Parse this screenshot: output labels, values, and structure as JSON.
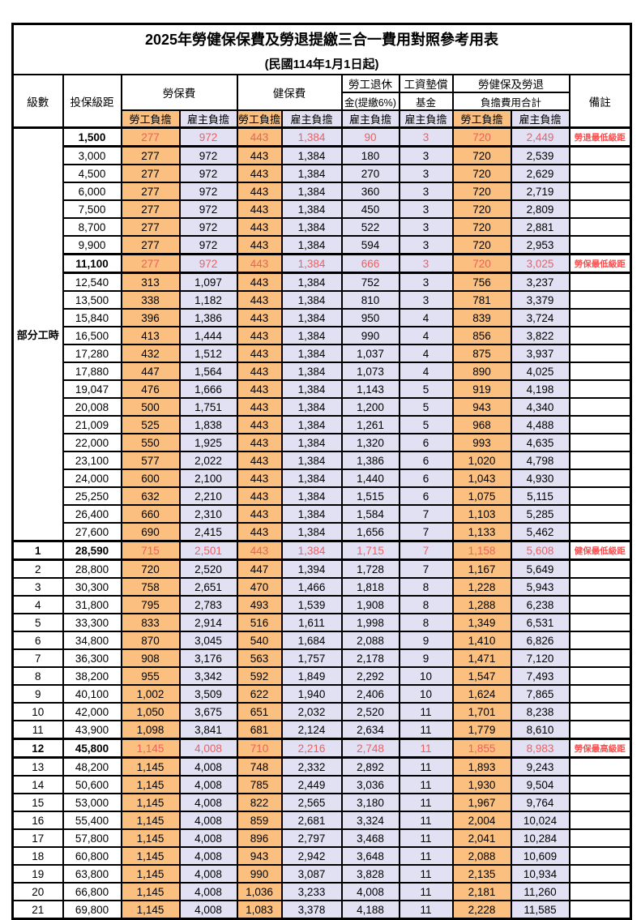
{
  "title": "2025年勞健保保費及勞退提繳三合一費用對照參考用表",
  "subtitle": "(民國114年1月1日起)",
  "header": {
    "level": "級數",
    "bracket": "投保級距",
    "labor_insurance": "勞保費",
    "health_insurance": "健保費",
    "pension_l1": "勞工退休",
    "pension_l2": "金(提繳6%)",
    "wage_fund_l1": "工資墊償",
    "wage_fund_l2": "基金",
    "total_l1": "勞健保及勞退",
    "total_l2": "負擔費用合計",
    "remark": "備註",
    "employee": "勞工負擔",
    "employer": "雇主負擔"
  },
  "part_time_label": "部分工時",
  "colors": {
    "employee_bg": "#fbbf80",
    "employer_bg": "#e2e0f3",
    "highlight_value_text": "#ee5f5f",
    "remark_text": "#fa4d4d"
  },
  "rows": [
    {
      "level": "",
      "bracket": "1,500",
      "values": [
        "277",
        "972",
        "443",
        "1,384",
        "90",
        "3",
        "720",
        "2,449"
      ],
      "remark": "勞退最低級距",
      "highlight": true
    },
    {
      "level": "",
      "bracket": "3,000",
      "values": [
        "277",
        "972",
        "443",
        "1,384",
        "180",
        "3",
        "720",
        "2,539"
      ],
      "remark": "",
      "highlight": false
    },
    {
      "level": "",
      "bracket": "4,500",
      "values": [
        "277",
        "972",
        "443",
        "1,384",
        "270",
        "3",
        "720",
        "2,629"
      ],
      "remark": "",
      "highlight": false
    },
    {
      "level": "",
      "bracket": "6,000",
      "values": [
        "277",
        "972",
        "443",
        "1,384",
        "360",
        "3",
        "720",
        "2,719"
      ],
      "remark": "",
      "highlight": false
    },
    {
      "level": "",
      "bracket": "7,500",
      "values": [
        "277",
        "972",
        "443",
        "1,384",
        "450",
        "3",
        "720",
        "2,809"
      ],
      "remark": "",
      "highlight": false
    },
    {
      "level": "",
      "bracket": "8,700",
      "values": [
        "277",
        "972",
        "443",
        "1,384",
        "522",
        "3",
        "720",
        "2,881"
      ],
      "remark": "",
      "highlight": false
    },
    {
      "level": "",
      "bracket": "9,900",
      "values": [
        "277",
        "972",
        "443",
        "1,384",
        "594",
        "3",
        "720",
        "2,953"
      ],
      "remark": "",
      "highlight": false
    },
    {
      "level": "",
      "bracket": "11,100",
      "values": [
        "277",
        "972",
        "443",
        "1,384",
        "666",
        "3",
        "720",
        "3,025"
      ],
      "remark": "勞保最低級距",
      "highlight": true
    },
    {
      "level": "",
      "bracket": "12,540",
      "values": [
        "313",
        "1,097",
        "443",
        "1,384",
        "752",
        "3",
        "756",
        "3,237"
      ],
      "remark": "",
      "highlight": false
    },
    {
      "level": "",
      "bracket": "13,500",
      "values": [
        "338",
        "1,182",
        "443",
        "1,384",
        "810",
        "3",
        "781",
        "3,379"
      ],
      "remark": "",
      "highlight": false
    },
    {
      "level": "",
      "bracket": "15,840",
      "values": [
        "396",
        "1,386",
        "443",
        "1,384",
        "950",
        "4",
        "839",
        "3,724"
      ],
      "remark": "",
      "highlight": false
    },
    {
      "level": "",
      "bracket": "16,500",
      "values": [
        "413",
        "1,444",
        "443",
        "1,384",
        "990",
        "4",
        "856",
        "3,822"
      ],
      "remark": "",
      "highlight": false
    },
    {
      "level": "",
      "bracket": "17,280",
      "values": [
        "432",
        "1,512",
        "443",
        "1,384",
        "1,037",
        "4",
        "875",
        "3,937"
      ],
      "remark": "",
      "highlight": false
    },
    {
      "level": "",
      "bracket": "17,880",
      "values": [
        "447",
        "1,564",
        "443",
        "1,384",
        "1,073",
        "4",
        "890",
        "4,025"
      ],
      "remark": "",
      "highlight": false
    },
    {
      "level": "",
      "bracket": "19,047",
      "values": [
        "476",
        "1,666",
        "443",
        "1,384",
        "1,143",
        "5",
        "919",
        "4,198"
      ],
      "remark": "",
      "highlight": false
    },
    {
      "level": "",
      "bracket": "20,008",
      "values": [
        "500",
        "1,751",
        "443",
        "1,384",
        "1,200",
        "5",
        "943",
        "4,340"
      ],
      "remark": "",
      "highlight": false
    },
    {
      "level": "",
      "bracket": "21,009",
      "values": [
        "525",
        "1,838",
        "443",
        "1,384",
        "1,261",
        "5",
        "968",
        "4,488"
      ],
      "remark": "",
      "highlight": false
    },
    {
      "level": "",
      "bracket": "22,000",
      "values": [
        "550",
        "1,925",
        "443",
        "1,384",
        "1,320",
        "6",
        "993",
        "4,635"
      ],
      "remark": "",
      "highlight": false
    },
    {
      "level": "",
      "bracket": "23,100",
      "values": [
        "577",
        "2,022",
        "443",
        "1,384",
        "1,386",
        "6",
        "1,020",
        "4,798"
      ],
      "remark": "",
      "highlight": false
    },
    {
      "level": "",
      "bracket": "24,000",
      "values": [
        "600",
        "2,100",
        "443",
        "1,384",
        "1,440",
        "6",
        "1,043",
        "4,930"
      ],
      "remark": "",
      "highlight": false
    },
    {
      "level": "",
      "bracket": "25,250",
      "values": [
        "632",
        "2,210",
        "443",
        "1,384",
        "1,515",
        "6",
        "1,075",
        "5,115"
      ],
      "remark": "",
      "highlight": false
    },
    {
      "level": "",
      "bracket": "26,400",
      "values": [
        "660",
        "2,310",
        "443",
        "1,384",
        "1,584",
        "7",
        "1,103",
        "5,285"
      ],
      "remark": "",
      "highlight": false
    },
    {
      "level": "",
      "bracket": "27,600",
      "values": [
        "690",
        "2,415",
        "443",
        "1,384",
        "1,656",
        "7",
        "1,133",
        "5,462"
      ],
      "remark": "",
      "highlight": false
    },
    {
      "level": "1",
      "bracket": "28,590",
      "values": [
        "715",
        "2,501",
        "443",
        "1,384",
        "1,715",
        "7",
        "1,158",
        "5,608"
      ],
      "remark": "健保最低級距",
      "highlight": true
    },
    {
      "level": "2",
      "bracket": "28,800",
      "values": [
        "720",
        "2,520",
        "447",
        "1,394",
        "1,728",
        "7",
        "1,167",
        "5,649"
      ],
      "remark": "",
      "highlight": false
    },
    {
      "level": "3",
      "bracket": "30,300",
      "values": [
        "758",
        "2,651",
        "470",
        "1,466",
        "1,818",
        "8",
        "1,228",
        "5,943"
      ],
      "remark": "",
      "highlight": false
    },
    {
      "level": "4",
      "bracket": "31,800",
      "values": [
        "795",
        "2,783",
        "493",
        "1,539",
        "1,908",
        "8",
        "1,288",
        "6,238"
      ],
      "remark": "",
      "highlight": false
    },
    {
      "level": "5",
      "bracket": "33,300",
      "values": [
        "833",
        "2,914",
        "516",
        "1,611",
        "1,998",
        "8",
        "1,349",
        "6,531"
      ],
      "remark": "",
      "highlight": false
    },
    {
      "level": "6",
      "bracket": "34,800",
      "values": [
        "870",
        "3,045",
        "540",
        "1,684",
        "2,088",
        "9",
        "1,410",
        "6,826"
      ],
      "remark": "",
      "highlight": false
    },
    {
      "level": "7",
      "bracket": "36,300",
      "values": [
        "908",
        "3,176",
        "563",
        "1,757",
        "2,178",
        "9",
        "1,471",
        "7,120"
      ],
      "remark": "",
      "highlight": false
    },
    {
      "level": "8",
      "bracket": "38,200",
      "values": [
        "955",
        "3,342",
        "592",
        "1,849",
        "2,292",
        "10",
        "1,547",
        "7,493"
      ],
      "remark": "",
      "highlight": false
    },
    {
      "level": "9",
      "bracket": "40,100",
      "values": [
        "1,002",
        "3,509",
        "622",
        "1,940",
        "2,406",
        "10",
        "1,624",
        "7,865"
      ],
      "remark": "",
      "highlight": false
    },
    {
      "level": "10",
      "bracket": "42,000",
      "values": [
        "1,050",
        "3,675",
        "651",
        "2,032",
        "2,520",
        "11",
        "1,701",
        "8,238"
      ],
      "remark": "",
      "highlight": false
    },
    {
      "level": "11",
      "bracket": "43,900",
      "values": [
        "1,098",
        "3,841",
        "681",
        "2,124",
        "2,634",
        "11",
        "1,779",
        "8,610"
      ],
      "remark": "",
      "highlight": false
    },
    {
      "level": "12",
      "bracket": "45,800",
      "values": [
        "1,145",
        "4,008",
        "710",
        "2,216",
        "2,748",
        "11",
        "1,855",
        "8,983"
      ],
      "remark": "勞保最高級距",
      "highlight": true
    },
    {
      "level": "13",
      "bracket": "48,200",
      "values": [
        "1,145",
        "4,008",
        "748",
        "2,332",
        "2,892",
        "11",
        "1,893",
        "9,243"
      ],
      "remark": "",
      "highlight": false
    },
    {
      "level": "14",
      "bracket": "50,600",
      "values": [
        "1,145",
        "4,008",
        "785",
        "2,449",
        "3,036",
        "11",
        "1,930",
        "9,504"
      ],
      "remark": "",
      "highlight": false
    },
    {
      "level": "15",
      "bracket": "53,000",
      "values": [
        "1,145",
        "4,008",
        "822",
        "2,565",
        "3,180",
        "11",
        "1,967",
        "9,764"
      ],
      "remark": "",
      "highlight": false
    },
    {
      "level": "16",
      "bracket": "55,400",
      "values": [
        "1,145",
        "4,008",
        "859",
        "2,681",
        "3,324",
        "11",
        "2,004",
        "10,024"
      ],
      "remark": "",
      "highlight": false
    },
    {
      "level": "17",
      "bracket": "57,800",
      "values": [
        "1,145",
        "4,008",
        "896",
        "2,797",
        "3,468",
        "11",
        "2,041",
        "10,284"
      ],
      "remark": "",
      "highlight": false
    },
    {
      "level": "18",
      "bracket": "60,800",
      "values": [
        "1,145",
        "4,008",
        "943",
        "2,942",
        "3,648",
        "11",
        "2,088",
        "10,609"
      ],
      "remark": "",
      "highlight": false
    },
    {
      "level": "19",
      "bracket": "63,800",
      "values": [
        "1,145",
        "4,008",
        "990",
        "3,087",
        "3,828",
        "11",
        "2,135",
        "10,934"
      ],
      "remark": "",
      "highlight": false
    },
    {
      "level": "20",
      "bracket": "66,800",
      "values": [
        "1,145",
        "4,008",
        "1,036",
        "3,233",
        "4,008",
        "11",
        "2,181",
        "11,260"
      ],
      "remark": "",
      "highlight": false
    },
    {
      "level": "21",
      "bracket": "69,800",
      "values": [
        "1,145",
        "4,008",
        "1,083",
        "3,378",
        "4,188",
        "11",
        "2,228",
        "11,585"
      ],
      "remark": "",
      "highlight": false
    }
  ]
}
